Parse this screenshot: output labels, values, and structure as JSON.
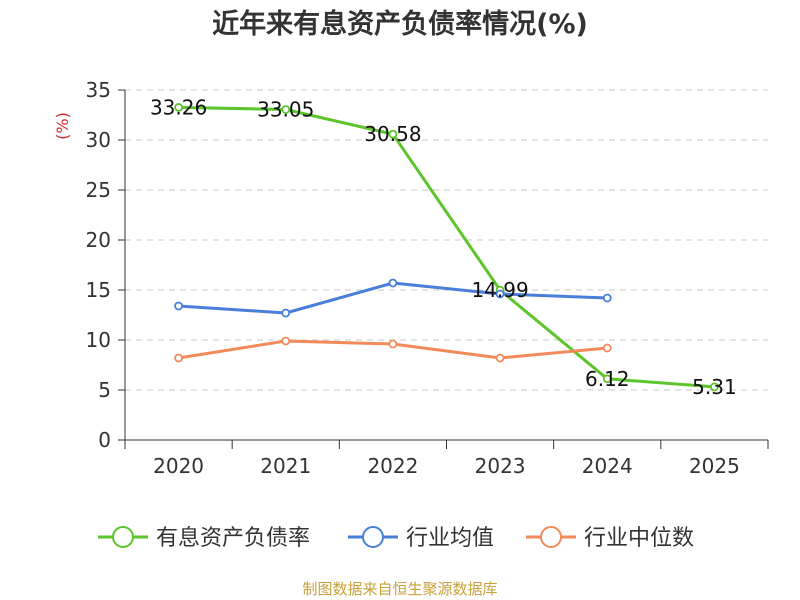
{
  "chart_data": {
    "type": "line",
    "title": "近年来有息资产负债率情况(%)",
    "ylabel": "(%)",
    "xlabel": "",
    "categories": [
      "2020",
      "2021",
      "2022",
      "2023",
      "2024",
      "2025"
    ],
    "ylim": [
      0,
      35
    ],
    "yticks": [
      0,
      5,
      10,
      15,
      20,
      25,
      30,
      35
    ],
    "grid": "horizontal-dashed",
    "legend_position": "bottom",
    "series": [
      {
        "name": "有息资产负债率",
        "color": "#5cc52b",
        "values": [
          33.26,
          33.05,
          30.58,
          14.99,
          6.12,
          5.31
        ],
        "labels": [
          "33.26",
          "33.05",
          "30.58",
          "14.99",
          "6.12",
          "5.31"
        ]
      },
      {
        "name": "行业均值",
        "color": "#4a7fd9",
        "values": [
          13.4,
          12.7,
          15.7,
          14.6,
          14.2,
          null
        ]
      },
      {
        "name": "行业中位数",
        "color": "#f28a5a",
        "values": [
          8.2,
          9.9,
          9.6,
          8.2,
          9.2,
          null
        ]
      }
    ],
    "source": "制图数据来自恒生聚源数据库"
  }
}
